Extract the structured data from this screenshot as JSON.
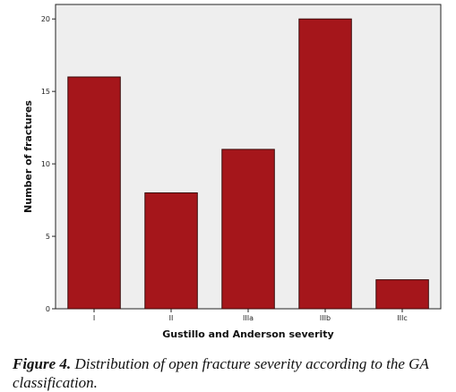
{
  "chart_data": {
    "type": "bar",
    "categories": [
      "I",
      "II",
      "IIIa",
      "IIIb",
      "IIIc"
    ],
    "values": [
      16,
      8,
      11,
      20,
      2
    ],
    "xlabel": "Gustillo and Anderson severity",
    "ylabel": "Number of fractures",
    "ylim": [
      0,
      21
    ],
    "yticks": [
      0,
      5,
      10,
      15,
      20
    ],
    "grid": false,
    "colors": {
      "bar": "#a5161b",
      "plot_background": "#eeeeee",
      "bar_edge": "#3a0a0a"
    }
  },
  "caption": {
    "label": "Figure 4.",
    "text": "Distribution of open fracture severity according to the GA classification."
  }
}
